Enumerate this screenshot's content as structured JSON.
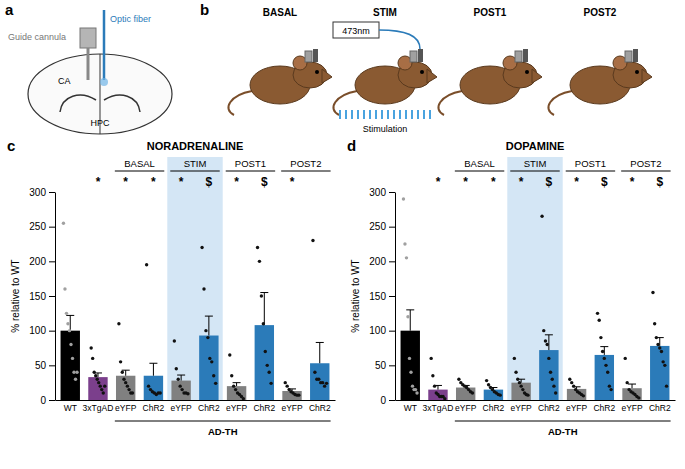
{
  "schematic": {
    "panel_a": {
      "letter": "a",
      "guide_cannula": "Guide cannula",
      "optic_fiber": "Optic fiber",
      "region": "CA",
      "structure": "HPC"
    },
    "panel_b": {
      "letter": "b",
      "stages": [
        "BASAL",
        "STIM",
        "POST1",
        "POST2"
      ],
      "laser": "473nm",
      "stimulation": "Stimulation"
    }
  },
  "chart_data": [
    {
      "type": "bar",
      "panel": "c",
      "title": "NORADRENALINE",
      "y_label": "% relative to WT",
      "categories": [
        "WT",
        "3xTgAD",
        "eYFP",
        "ChR2",
        "eYFP",
        "ChR2",
        "eYFP",
        "ChR2",
        "eYFP",
        "ChR2"
      ],
      "groups": [
        null,
        null,
        "BASAL",
        "BASAL",
        "STIM",
        "STIM",
        "POST1",
        "POST1",
        "POST2",
        "POST2"
      ],
      "highlight": "STIM",
      "subset": [
        null,
        null,
        "AD-TH",
        "AD-TH",
        "AD-TH",
        "AD-TH",
        "AD-TH",
        "AD-TH",
        "AD-TH",
        "AD-TH"
      ],
      "values": [
        100,
        33,
        35,
        35,
        28,
        93,
        20,
        108,
        13,
        53
      ],
      "errors": [
        22,
        6,
        8,
        18,
        8,
        28,
        5,
        47,
        3,
        30
      ],
      "points": [
        [
          255,
          160,
          125,
          110,
          100,
          80,
          60,
          40,
          30,
          40
        ],
        [
          75,
          60,
          40,
          35,
          30,
          25,
          20,
          15,
          10,
          20
        ],
        [
          110,
          55,
          40,
          30,
          25,
          20,
          15,
          10,
          10
        ],
        [
          195,
          20,
          15,
          12,
          10,
          8,
          10,
          10
        ],
        [
          85,
          45,
          30,
          20,
          15,
          10,
          10,
          9
        ],
        [
          220,
          160,
          100,
          90,
          60,
          55,
          35,
          24
        ],
        [
          65,
          35,
          20,
          15,
          10,
          8,
          5,
          2
        ],
        [
          220,
          200,
          150,
          110,
          70,
          50,
          40,
          24
        ],
        [
          25,
          20,
          15,
          12,
          10,
          8,
          7,
          7
        ],
        [
          230,
          40,
          30,
          30,
          25,
          25,
          20,
          24
        ]
      ],
      "significance": [
        null,
        "*",
        "*",
        "*",
        "*",
        "$",
        "*",
        "$",
        "*",
        null
      ],
      "colors": [
        "#000000",
        "#7b3f8c",
        "#808080",
        "#2b7bb9",
        "#808080",
        "#2b7bb9",
        "#808080",
        "#2b7bb9",
        "#808080",
        "#2b7bb9"
      ],
      "ylim": [
        0,
        300
      ],
      "yticks": [
        0,
        50,
        100,
        150,
        200,
        250,
        300
      ]
    },
    {
      "type": "bar",
      "panel": "d",
      "title": "DOPAMINE",
      "y_label": "% relative to WT",
      "categories": [
        "WT",
        "3xTgAD",
        "eYFP",
        "ChR2",
        "eYFP",
        "ChR2",
        "eYFP",
        "ChR2",
        "eYFP",
        "ChR2"
      ],
      "groups": [
        null,
        null,
        "BASAL",
        "BASAL",
        "STIM",
        "STIM",
        "POST1",
        "POST1",
        "POST2",
        "POST2"
      ],
      "highlight": "STIM",
      "subset": [
        null,
        null,
        "AD-TH",
        "AD-TH",
        "AD-TH",
        "AD-TH",
        "AD-TH",
        "AD-TH",
        "AD-TH",
        "AD-TH"
      ],
      "values": [
        100,
        15,
        18,
        15,
        25,
        72,
        16,
        65,
        17,
        78
      ],
      "errors": [
        30,
        6,
        3,
        3,
        5,
        22,
        3,
        12,
        6,
        12
      ],
      "points": [
        [
          290,
          225,
          205,
          120,
          60,
          40,
          20,
          15,
          15,
          10
        ],
        [
          60,
          35,
          20,
          10,
          8,
          5,
          5,
          5,
          2
        ],
        [
          30,
          25,
          22,
          20,
          18,
          15,
          12,
          10
        ],
        [
          28,
          22,
          18,
          15,
          12,
          10,
          8,
          7
        ],
        [
          60,
          40,
          30,
          25,
          20,
          15,
          10,
          8,
          7
        ],
        [
          265,
          100,
          85,
          80,
          60,
          40,
          30,
          20,
          10
        ],
        [
          30,
          25,
          20,
          15,
          12,
          10,
          8,
          6
        ],
        [
          125,
          115,
          90,
          70,
          60,
          50,
          40,
          20,
          15
        ],
        [
          60,
          25,
          15,
          12,
          10,
          8,
          5,
          3
        ],
        [
          155,
          110,
          90,
          80,
          75,
          70,
          55,
          50,
          20
        ]
      ],
      "significance": [
        null,
        "*",
        "*",
        "*",
        "*",
        "$",
        "*",
        "$",
        "*",
        "$"
      ],
      "colors": [
        "#000000",
        "#7b3f8c",
        "#808080",
        "#2b7bb9",
        "#808080",
        "#2b7bb9",
        "#808080",
        "#2b7bb9",
        "#808080",
        "#2b7bb9"
      ],
      "ylim": [
        0,
        300
      ],
      "yticks": [
        0,
        50,
        100,
        150,
        200,
        250,
        300
      ]
    }
  ]
}
